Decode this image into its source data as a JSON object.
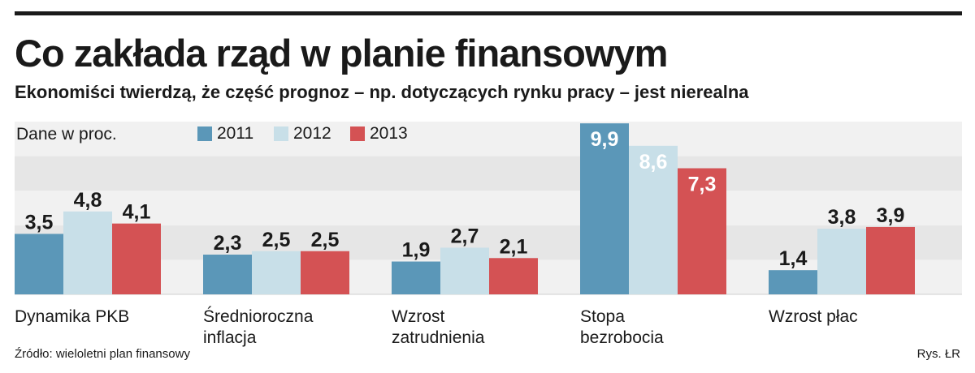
{
  "title": "Co zakłada rząd w planie finansowym",
  "subtitle": "Ekonomiści twierdzą, że część prognoz – np. dotyczących rynku pracy – jest nierealna",
  "source": "Źródło:  wieloletni plan finansowy",
  "credit": "Rys. ŁR",
  "chart_data": {
    "type": "bar",
    "unit_label": "Dane w proc.",
    "categories": [
      [
        "Dynamika PKB"
      ],
      [
        "Średnioroczna",
        "inflacja"
      ],
      [
        "Wzrost",
        "zatrudnienia"
      ],
      [
        "Stopa",
        "bezrobocia"
      ],
      [
        "Wzrost płac"
      ]
    ],
    "series": [
      {
        "name": "2011",
        "color": "#5b97b8",
        "values": [
          3.5,
          2.3,
          1.9,
          9.9,
          1.4
        ],
        "labels": [
          "3,5",
          "2,3",
          "1,9",
          "9,9",
          "1,4"
        ]
      },
      {
        "name": "2012",
        "color": "#c8dfe8",
        "values": [
          4.8,
          2.5,
          2.7,
          8.6,
          3.8
        ],
        "labels": [
          "4,8",
          "2,5",
          "2,7",
          "8,6",
          "3,8"
        ]
      },
      {
        "name": "2013",
        "color": "#d45254",
        "values": [
          4.1,
          2.5,
          2.1,
          7.3,
          3.9
        ],
        "labels": [
          "4,1",
          "2,5",
          "2,1",
          "7,3",
          "3,9"
        ]
      }
    ],
    "ylim": [
      0,
      10
    ],
    "grid": true,
    "legend_position": "top"
  }
}
